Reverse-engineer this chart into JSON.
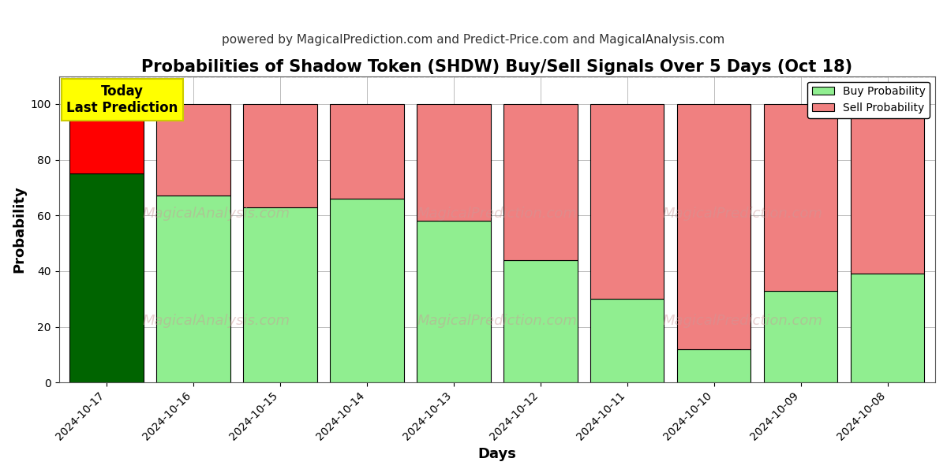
{
  "title": "Probabilities of Shadow Token (SHDW) Buy/Sell Signals Over 5 Days (Oct 18)",
  "subtitle": "powered by MagicalPrediction.com and Predict-Price.com and MagicalAnalysis.com",
  "xlabel": "Days",
  "ylabel": "Probability",
  "ylim": [
    0,
    110
  ],
  "yticks": [
    0,
    20,
    40,
    60,
    80,
    100
  ],
  "dashed_line_y": 110,
  "dates": [
    "2024-10-17",
    "2024-10-16",
    "2024-10-15",
    "2024-10-14",
    "2024-10-13",
    "2024-10-12",
    "2024-10-11",
    "2024-10-10",
    "2024-10-09",
    "2024-10-08"
  ],
  "buy_values": [
    75,
    67,
    63,
    66,
    58,
    44,
    30,
    12,
    33,
    39
  ],
  "sell_values": [
    25,
    33,
    37,
    34,
    42,
    56,
    70,
    88,
    67,
    61
  ],
  "today_buy_color": "#006400",
  "today_sell_color": "#ff0000",
  "buy_color": "#90EE90",
  "sell_color": "#F08080",
  "bar_edge_color": "#000000",
  "bar_edge_width": 0.8,
  "today_annotation_text": "Today\nLast Prediction",
  "today_annotation_bg": "#ffff00",
  "today_annotation_fontsize": 12,
  "legend_buy_label": "Buy Probability",
  "legend_sell_label": "Sell Probability",
  "title_fontsize": 15,
  "subtitle_fontsize": 11,
  "axis_label_fontsize": 13,
  "tick_label_fontsize": 10,
  "grid_color": "#bbbbbb",
  "grid_linestyle": "-",
  "grid_linewidth": 0.7,
  "background_color": "#ffffff",
  "bar_width": 0.85
}
